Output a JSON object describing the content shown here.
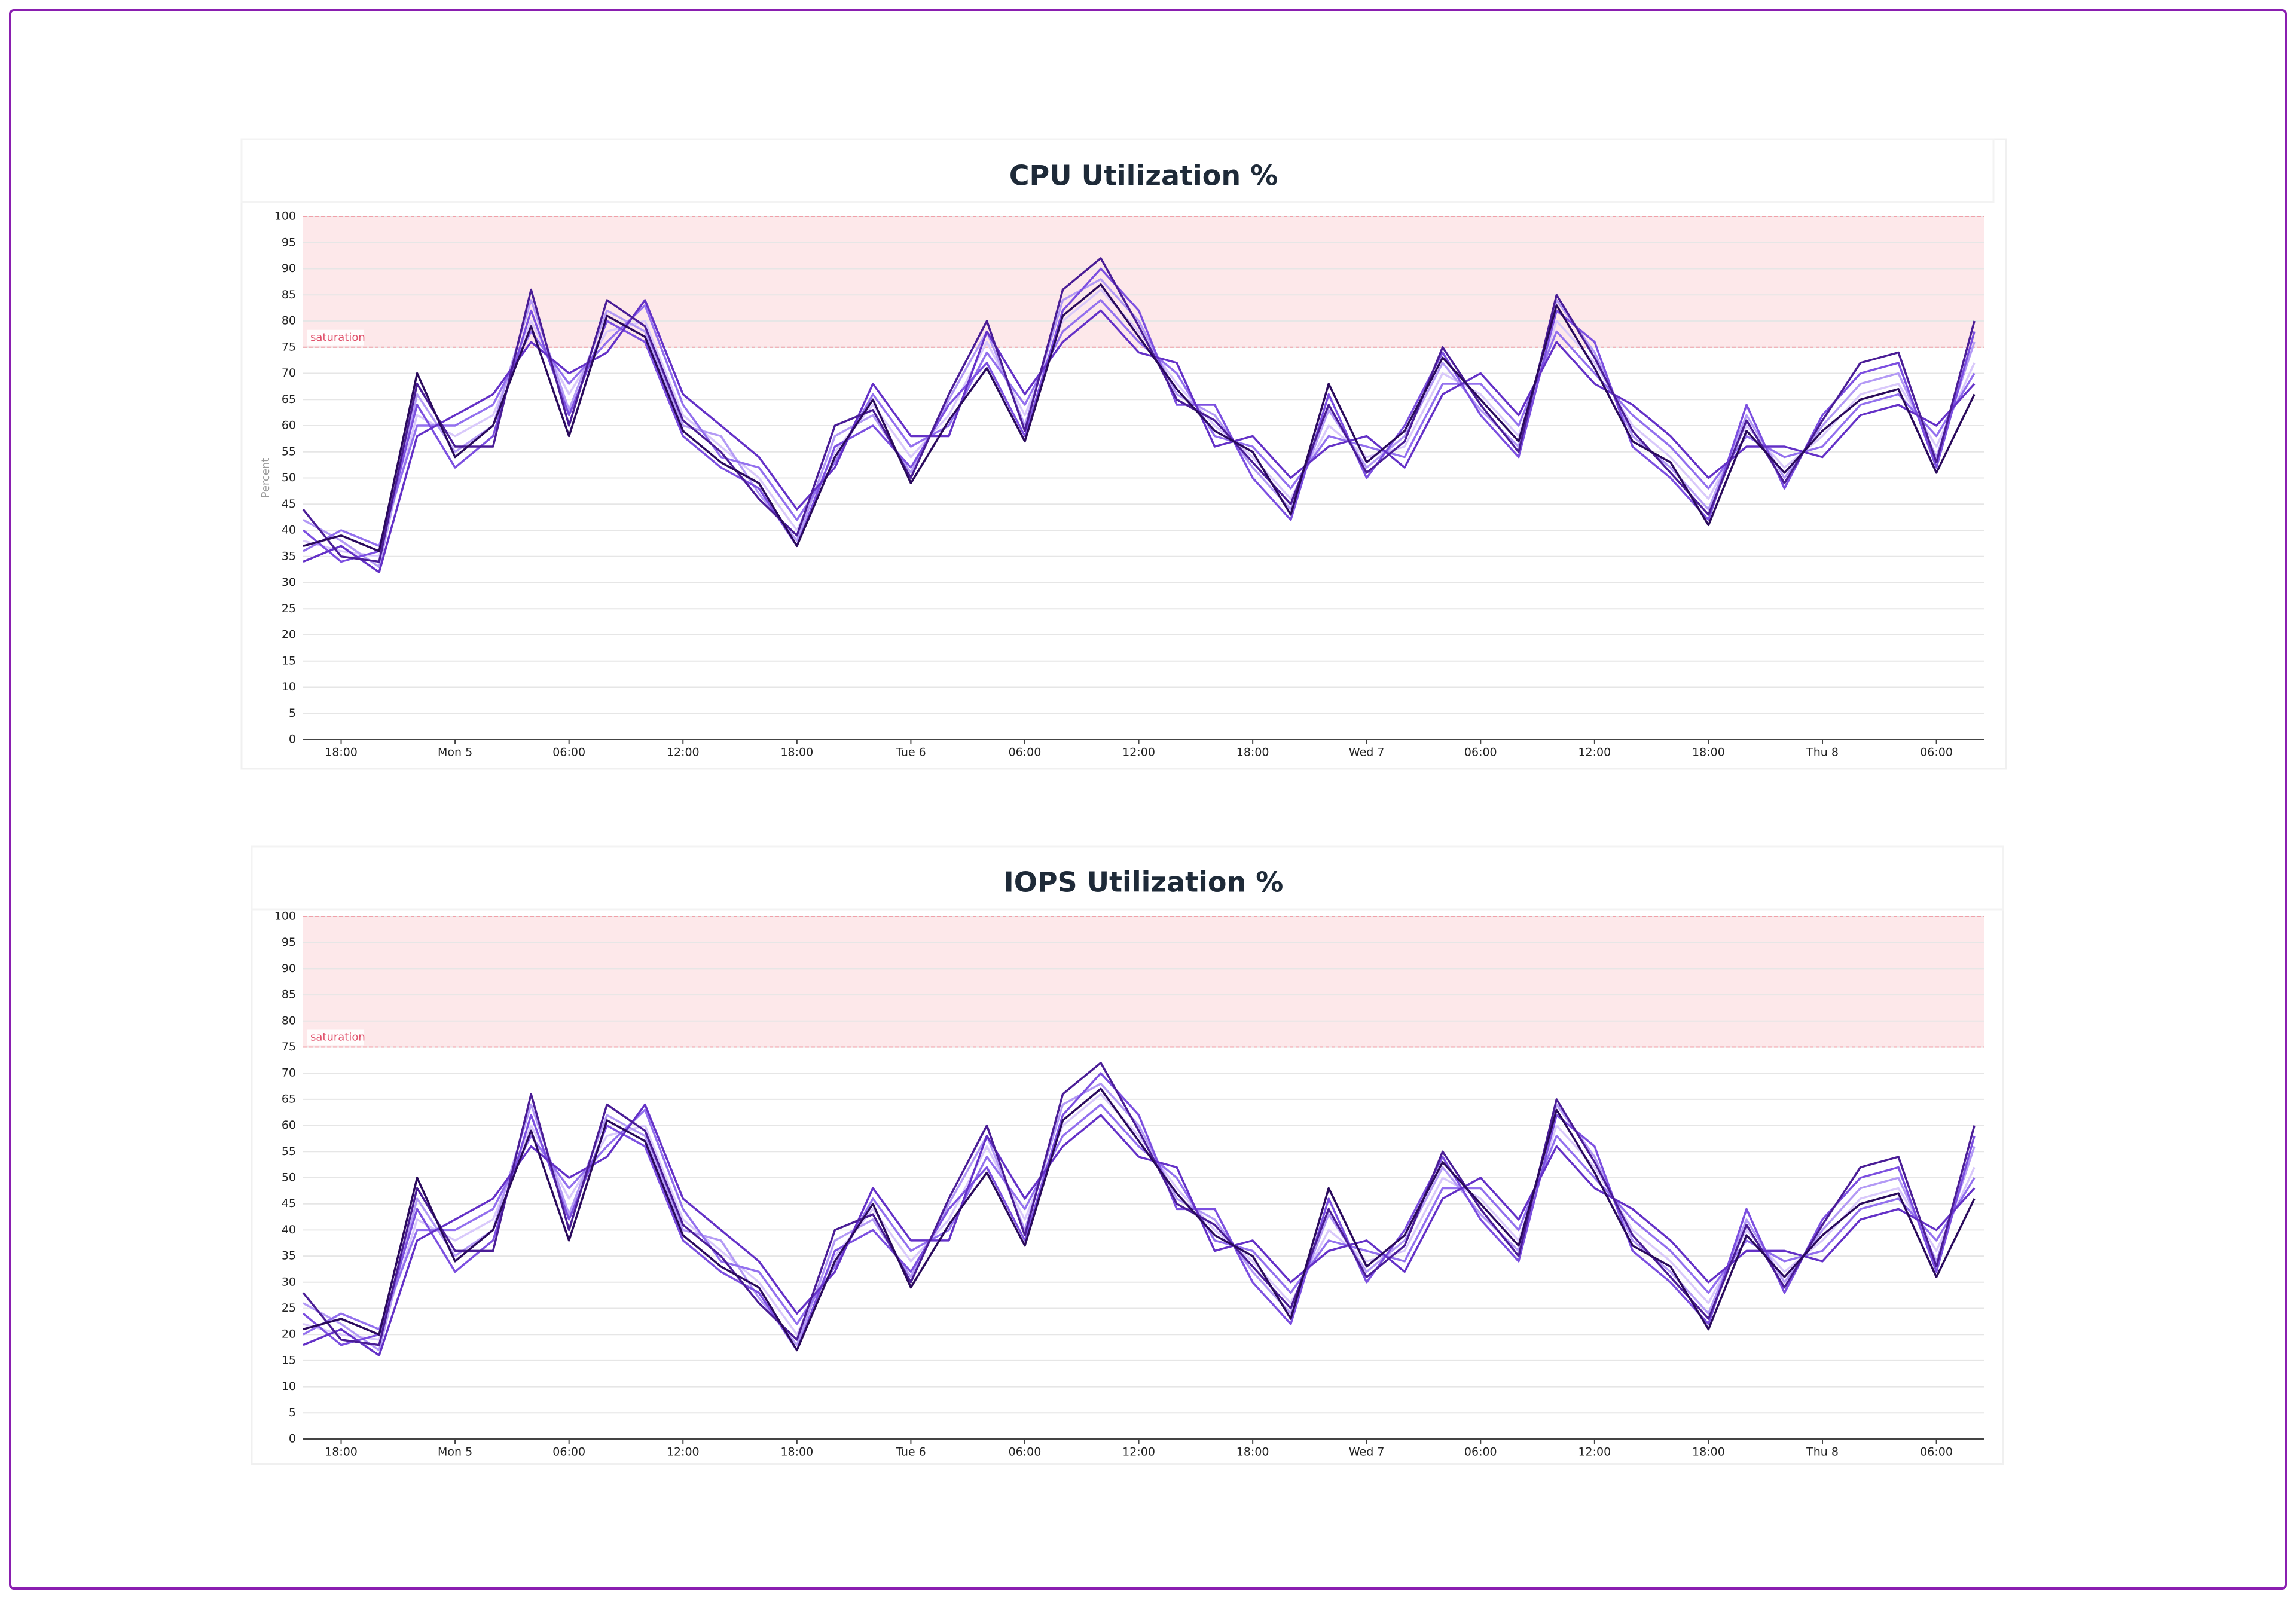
{
  "chart_data": [
    {
      "type": "line",
      "title": "CPU Utilization %",
      "y_label": "Percent",
      "x": [
        -8,
        -6,
        -4,
        -2,
        0,
        2,
        4,
        6,
        8,
        10,
        12,
        14,
        16,
        18,
        20,
        22,
        24,
        26,
        28,
        30,
        32,
        34,
        36,
        38,
        40,
        42,
        44,
        46,
        48,
        50,
        52,
        54,
        56,
        58,
        60,
        62,
        64,
        66,
        68,
        70,
        72,
        74,
        76,
        78,
        80
      ],
      "xlim": [
        -8,
        80.5
      ],
      "xticks": [
        {
          "value": -6,
          "label": "18:00"
        },
        {
          "value": 0,
          "label": "Mon 5"
        },
        {
          "value": 6,
          "label": "06:00"
        },
        {
          "value": 12,
          "label": "12:00"
        },
        {
          "value": 18,
          "label": "18:00"
        },
        {
          "value": 24,
          "label": "Tue 6"
        },
        {
          "value": 30,
          "label": "06:00"
        },
        {
          "value": 36,
          "label": "12:00"
        },
        {
          "value": 42,
          "label": "18:00"
        },
        {
          "value": 48,
          "label": "Wed 7"
        },
        {
          "value": 54,
          "label": "06:00"
        },
        {
          "value": 60,
          "label": "12:00"
        },
        {
          "value": 66,
          "label": "18:00"
        },
        {
          "value": 72,
          "label": "Thu 8"
        },
        {
          "value": 78,
          "label": "06:00"
        }
      ],
      "ylim": [
        0,
        100
      ],
      "yticks": [
        0,
        5,
        10,
        15,
        20,
        25,
        30,
        35,
        40,
        45,
        50,
        55,
        60,
        65,
        70,
        75,
        80,
        85,
        90,
        95,
        100
      ],
      "grid": true,
      "band": {
        "label": "saturation",
        "range": [
          75,
          100
        ],
        "color": "#fde8ea",
        "line_color": "#f0a0a8",
        "label_color": "#e0506a"
      },
      "series": [
        {
          "color": "#d9c9fb",
          "values": [
            38,
            36,
            35,
            62,
            58,
            62,
            80,
            66,
            78,
            80,
            62,
            56,
            50,
            40,
            55,
            64,
            54,
            62,
            76,
            62,
            80,
            86,
            78,
            68,
            60,
            54,
            46,
            60,
            54,
            56,
            70,
            66,
            58,
            80,
            72,
            60,
            54,
            46,
            60,
            52,
            58,
            66,
            68,
            56,
            72
          ]
        },
        {
          "color": "#b39af5",
          "values": [
            42,
            38,
            33,
            66,
            55,
            60,
            84,
            63,
            82,
            78,
            60,
            58,
            47,
            38,
            58,
            62,
            51,
            65,
            78,
            60,
            84,
            88,
            80,
            66,
            62,
            52,
            44,
            63,
            52,
            58,
            72,
            63,
            56,
            84,
            74,
            58,
            52,
            44,
            62,
            50,
            60,
            68,
            70,
            54,
            76
          ]
        },
        {
          "color": "#9370ee",
          "values": [
            36,
            40,
            37,
            60,
            60,
            64,
            78,
            68,
            76,
            83,
            64,
            54,
            52,
            42,
            53,
            66,
            56,
            60,
            74,
            64,
            78,
            84,
            76,
            70,
            58,
            56,
            48,
            58,
            56,
            54,
            68,
            68,
            60,
            78,
            70,
            62,
            56,
            48,
            58,
            54,
            56,
            64,
            66,
            58,
            70
          ]
        },
        {
          "color": "#7c4fe0",
          "values": [
            40,
            34,
            36,
            64,
            52,
            58,
            82,
            62,
            80,
            76,
            58,
            52,
            48,
            37,
            56,
            60,
            52,
            64,
            72,
            58,
            82,
            90,
            82,
            64,
            64,
            50,
            42,
            66,
            50,
            60,
            74,
            62,
            54,
            82,
            76,
            56,
            50,
            42,
            64,
            48,
            62,
            70,
            72,
            52,
            78
          ]
        },
        {
          "color": "#6431c7",
          "values": [
            34,
            37,
            32,
            58,
            62,
            66,
            76,
            70,
            74,
            84,
            66,
            60,
            54,
            44,
            52,
            68,
            58,
            58,
            78,
            66,
            76,
            82,
            74,
            72,
            56,
            58,
            50,
            56,
            58,
            52,
            66,
            70,
            62,
            76,
            68,
            64,
            58,
            50,
            56,
            56,
            54,
            62,
            64,
            60,
            68
          ]
        },
        {
          "color": "#4a1d96",
          "values": [
            44,
            35,
            34,
            68,
            56,
            56,
            86,
            60,
            84,
            79,
            61,
            55,
            46,
            39,
            60,
            63,
            50,
            66,
            80,
            59,
            86,
            92,
            79,
            65,
            61,
            53,
            45,
            64,
            51,
            57,
            75,
            64,
            55,
            85,
            73,
            59,
            51,
            43,
            61,
            49,
            61,
            72,
            74,
            53,
            80
          ]
        },
        {
          "color": "#2a0a5c",
          "values": [
            37,
            39,
            36,
            70,
            54,
            60,
            79,
            58,
            81,
            77,
            59,
            53,
            49,
            37,
            54,
            65,
            49,
            61,
            71,
            57,
            81,
            87,
            77,
            67,
            59,
            55,
            43,
            68,
            53,
            59,
            73,
            65,
            57,
            83,
            71,
            57,
            53,
            41,
            59,
            51,
            59,
            65,
            67,
            51,
            66
          ]
        }
      ]
    },
    {
      "type": "line",
      "title": "IOPS Utilization %",
      "x": [
        -8,
        -6,
        -4,
        -2,
        0,
        2,
        4,
        6,
        8,
        10,
        12,
        14,
        16,
        18,
        20,
        22,
        24,
        26,
        28,
        30,
        32,
        34,
        36,
        38,
        40,
        42,
        44,
        46,
        48,
        50,
        52,
        54,
        56,
        58,
        60,
        62,
        64,
        66,
        68,
        70,
        72,
        74,
        76,
        78,
        80
      ],
      "xlim": [
        -8,
        80.5
      ],
      "xticks": [
        {
          "value": -6,
          "label": "18:00"
        },
        {
          "value": 0,
          "label": "Mon 5"
        },
        {
          "value": 6,
          "label": "06:00"
        },
        {
          "value": 12,
          "label": "12:00"
        },
        {
          "value": 18,
          "label": "18:00"
        },
        {
          "value": 24,
          "label": "Tue 6"
        },
        {
          "value": 30,
          "label": "06:00"
        },
        {
          "value": 36,
          "label": "12:00"
        },
        {
          "value": 42,
          "label": "18:00"
        },
        {
          "value": 48,
          "label": "Wed 7"
        },
        {
          "value": 54,
          "label": "06:00"
        },
        {
          "value": 60,
          "label": "12:00"
        },
        {
          "value": 66,
          "label": "18:00"
        },
        {
          "value": 72,
          "label": "Thu 8"
        },
        {
          "value": 78,
          "label": "06:00"
        }
      ],
      "ylim": [
        0,
        100
      ],
      "yticks": [
        0,
        5,
        10,
        15,
        20,
        25,
        30,
        35,
        40,
        45,
        50,
        55,
        60,
        65,
        70,
        75,
        80,
        85,
        90,
        95,
        100
      ],
      "grid": true,
      "band": {
        "label": "saturation",
        "range": [
          75,
          100
        ],
        "color": "#fde8ea",
        "line_color": "#f0a0a8",
        "label_color": "#e0506a"
      },
      "series": [
        {
          "color": "#d9c9fb",
          "values": [
            22,
            20,
            19,
            42,
            38,
            42,
            60,
            46,
            58,
            60,
            42,
            36,
            30,
            20,
            35,
            44,
            34,
            42,
            56,
            42,
            60,
            66,
            58,
            48,
            40,
            34,
            26,
            40,
            34,
            36,
            50,
            46,
            38,
            60,
            52,
            40,
            34,
            26,
            40,
            32,
            38,
            46,
            48,
            36,
            52
          ]
        },
        {
          "color": "#b39af5",
          "values": [
            26,
            22,
            17,
            46,
            35,
            40,
            64,
            43,
            62,
            58,
            40,
            38,
            27,
            18,
            38,
            42,
            31,
            45,
            58,
            40,
            64,
            68,
            60,
            46,
            42,
            32,
            24,
            43,
            32,
            38,
            52,
            43,
            36,
            64,
            54,
            38,
            32,
            24,
            42,
            30,
            40,
            48,
            50,
            34,
            56
          ]
        },
        {
          "color": "#9370ee",
          "values": [
            20,
            24,
            21,
            40,
            40,
            44,
            58,
            48,
            56,
            63,
            44,
            34,
            32,
            22,
            33,
            46,
            36,
            40,
            54,
            44,
            58,
            64,
            56,
            50,
            38,
            36,
            28,
            38,
            36,
            34,
            48,
            48,
            40,
            58,
            50,
            42,
            36,
            28,
            38,
            34,
            36,
            44,
            46,
            38,
            50
          ]
        },
        {
          "color": "#7c4fe0",
          "values": [
            24,
            18,
            20,
            44,
            32,
            38,
            62,
            42,
            60,
            56,
            38,
            32,
            28,
            17,
            36,
            40,
            32,
            44,
            52,
            38,
            62,
            70,
            62,
            44,
            44,
            30,
            22,
            46,
            30,
            40,
            54,
            42,
            34,
            62,
            56,
            36,
            30,
            22,
            44,
            28,
            42,
            50,
            52,
            32,
            58
          ]
        },
        {
          "color": "#6431c7",
          "values": [
            18,
            21,
            16,
            38,
            42,
            46,
            56,
            50,
            54,
            64,
            46,
            40,
            34,
            24,
            32,
            48,
            38,
            38,
            58,
            46,
            56,
            62,
            54,
            52,
            36,
            38,
            30,
            36,
            38,
            32,
            46,
            50,
            42,
            56,
            48,
            44,
            38,
            30,
            36,
            36,
            34,
            42,
            44,
            40,
            48
          ]
        },
        {
          "color": "#4a1d96",
          "values": [
            28,
            19,
            18,
            48,
            36,
            36,
            66,
            40,
            64,
            59,
            41,
            35,
            26,
            19,
            40,
            43,
            30,
            46,
            60,
            39,
            66,
            72,
            59,
            45,
            41,
            33,
            25,
            44,
            31,
            37,
            55,
            44,
            35,
            65,
            53,
            39,
            31,
            23,
            41,
            29,
            41,
            52,
            54,
            33,
            60
          ]
        },
        {
          "color": "#2a0a5c",
          "values": [
            21,
            23,
            20,
            50,
            34,
            40,
            59,
            38,
            61,
            57,
            39,
            33,
            29,
            17,
            34,
            45,
            29,
            41,
            51,
            37,
            61,
            67,
            57,
            47,
            39,
            35,
            23,
            48,
            33,
            39,
            53,
            45,
            37,
            63,
            51,
            37,
            33,
            21,
            39,
            31,
            39,
            45,
            47,
            31,
            46
          ]
        }
      ]
    }
  ]
}
